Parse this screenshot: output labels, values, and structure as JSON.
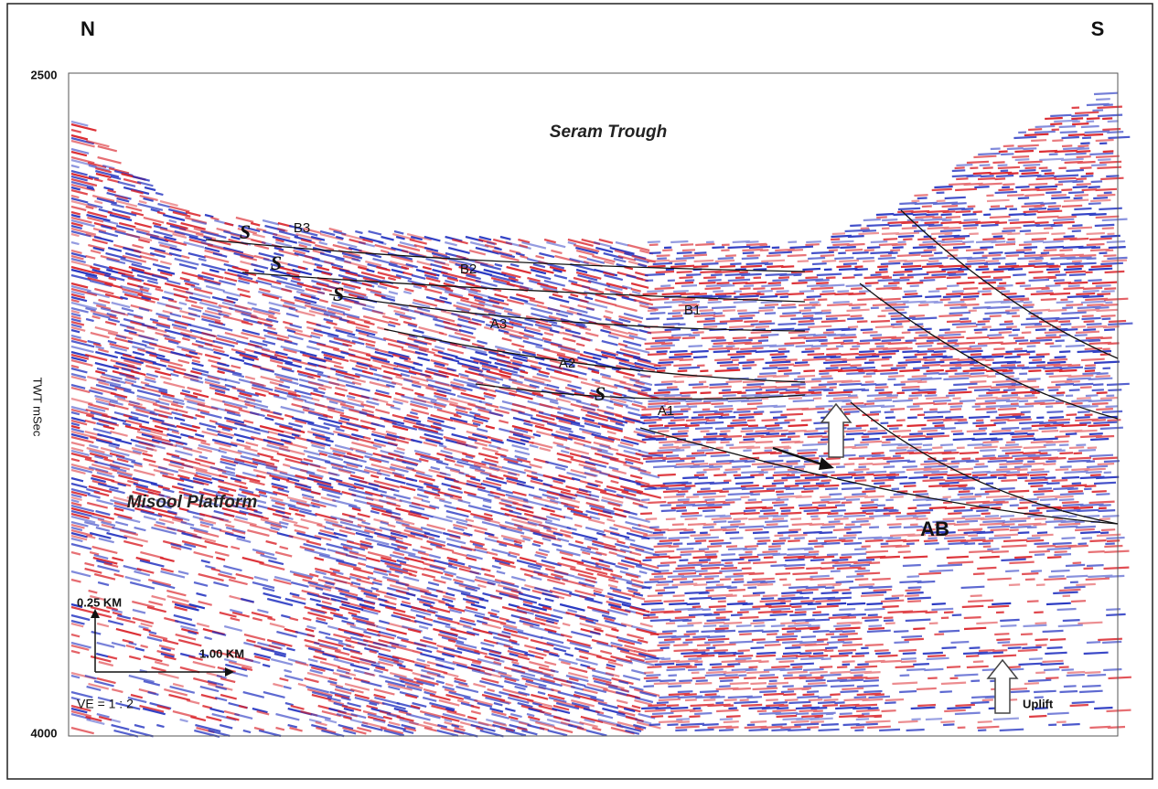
{
  "header": {
    "left": "N",
    "right": "S"
  },
  "axis": {
    "top": 2500,
    "bottom": 4000,
    "label": "TWT mSec"
  },
  "regions": {
    "trough": "Seram Trough",
    "platform": "Misool Platform",
    "block": "AB"
  },
  "horizons": [
    "B3",
    "B2",
    "B1",
    "A3",
    "A2",
    "A1"
  ],
  "sequence_marks": [
    "S",
    "S",
    "S",
    "S"
  ],
  "scale": {
    "vertical": "0.25 KM",
    "horizontal": "1.00 KM",
    "exaggeration": "VE = 1 : 2"
  },
  "uplift": "Uplift"
}
